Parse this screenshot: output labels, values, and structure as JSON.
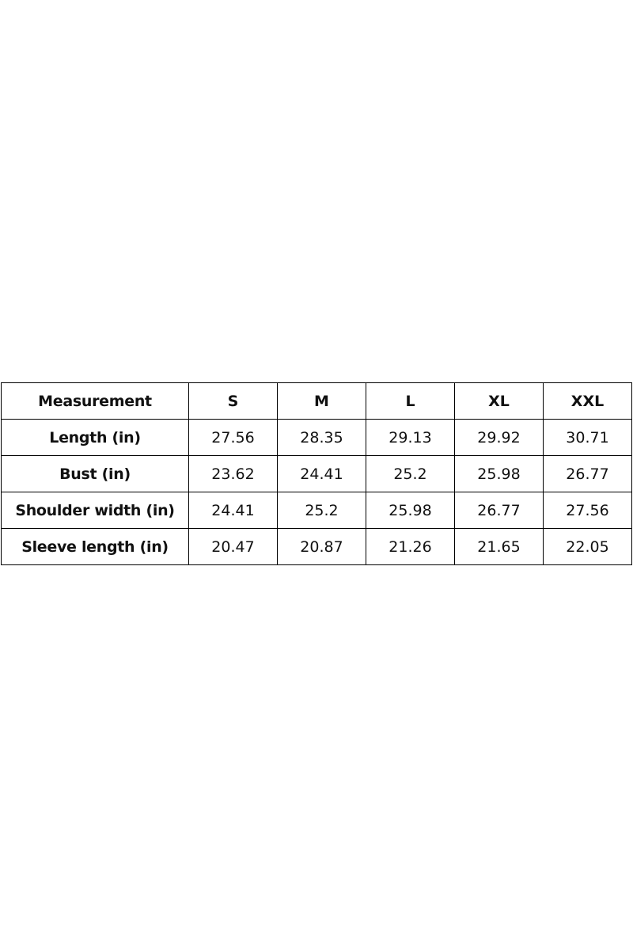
{
  "table": {
    "header": [
      "Measurement",
      "S",
      "M",
      "L",
      "XL",
      "XXL"
    ],
    "rows": [
      [
        "Length (in)",
        27.56,
        28.35,
        29.13,
        29.92,
        30.71
      ],
      [
        "Bust (in)",
        23.62,
        24.41,
        25.2,
        25.98,
        26.77
      ],
      [
        "Shoulder width (in)",
        24.41,
        25.2,
        25.98,
        26.77,
        27.56
      ],
      [
        "Sleeve length (in)",
        20.47,
        20.87,
        21.26,
        21.65,
        22.05
      ]
    ]
  }
}
